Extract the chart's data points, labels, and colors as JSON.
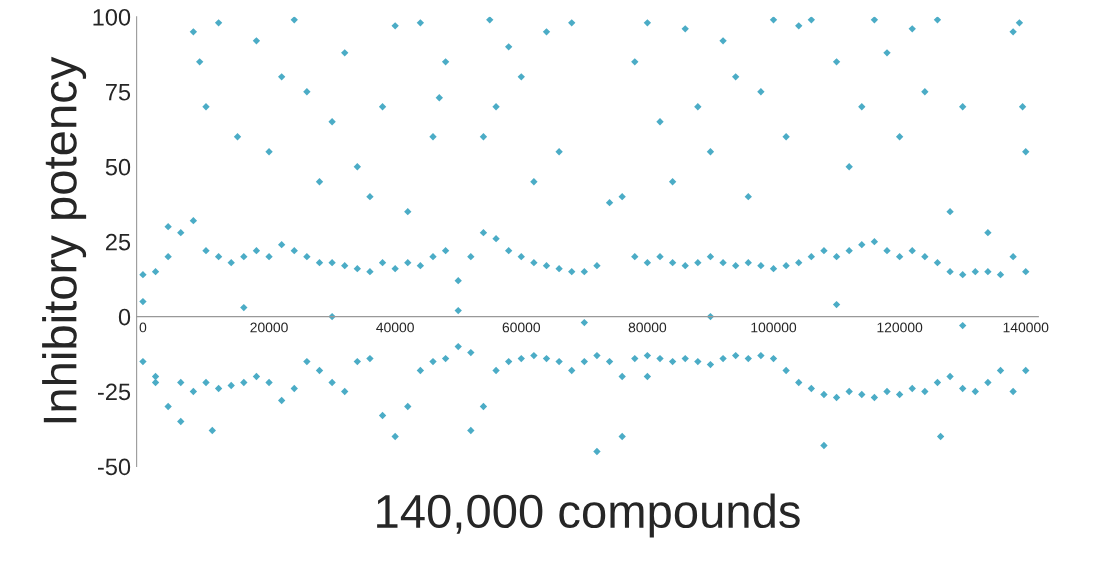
{
  "chart_data": {
    "type": "scatter",
    "xlabel": "140,000 compounds",
    "ylabel": "Inhibitory potency",
    "xlim": [
      -1000,
      142000
    ],
    "xticks": [
      0,
      20000,
      40000,
      60000,
      80000,
      100000,
      120000,
      140000
    ],
    "ylim": [
      -50,
      100
    ],
    "yticks": [
      -50,
      -25,
      0,
      25,
      50,
      75,
      100
    ],
    "grid": false,
    "marker": "diamond",
    "series": [
      {
        "color": "#4bacc6",
        "x": [
          0,
          2000,
          4000,
          6000,
          8000,
          10000,
          12000,
          14000,
          16000,
          18000,
          20000,
          22000,
          24000,
          26000,
          28000,
          30000,
          32000,
          34000,
          36000,
          38000,
          40000,
          42000,
          44000,
          46000,
          48000,
          50000,
          52000,
          54000,
          56000,
          58000,
          60000,
          62000,
          64000,
          66000,
          68000,
          70000,
          72000,
          74000,
          76000,
          78000,
          80000,
          82000,
          84000,
          86000,
          88000,
          90000,
          92000,
          94000,
          96000,
          98000,
          100000,
          102000,
          104000,
          106000,
          108000,
          110000,
          112000,
          114000,
          116000,
          118000,
          120000,
          122000,
          124000,
          126000,
          128000,
          130000,
          132000,
          134000,
          136000,
          138000,
          140000
        ],
        "values": [
          14,
          15,
          20,
          28,
          32,
          22,
          20,
          18,
          20,
          22,
          20,
          24,
          22,
          20,
          18,
          18,
          17,
          16,
          15,
          18,
          16,
          18,
          17,
          20,
          22,
          12,
          20,
          28,
          26,
          22,
          20,
          18,
          17,
          16,
          15,
          15,
          17,
          38,
          40,
          20,
          18,
          20,
          18,
          17,
          18,
          20,
          18,
          17,
          18,
          17,
          16,
          17,
          18,
          20,
          22,
          20,
          22,
          24,
          25,
          22,
          20,
          22,
          20,
          18,
          15,
          14,
          15,
          15,
          14,
          20,
          15
        ]
      },
      {
        "color": "#4bacc6",
        "x": [
          0,
          2000,
          4000,
          6000,
          8000,
          10000,
          12000,
          14000,
          16000,
          18000,
          20000,
          22000,
          24000,
          26000,
          28000,
          30000,
          32000,
          34000,
          36000,
          38000,
          40000,
          42000,
          44000,
          46000,
          48000,
          50000,
          52000,
          54000,
          56000,
          58000,
          60000,
          62000,
          64000,
          66000,
          68000,
          70000,
          72000,
          74000,
          76000,
          78000,
          80000,
          82000,
          84000,
          86000,
          88000,
          90000,
          92000,
          94000,
          96000,
          98000,
          100000,
          102000,
          104000,
          106000,
          108000,
          110000,
          112000,
          114000,
          116000,
          118000,
          120000,
          122000,
          124000,
          126000,
          128000,
          130000,
          132000,
          134000,
          136000,
          138000,
          140000
        ],
        "values": [
          -15,
          -22,
          -30,
          -22,
          -25,
          -22,
          -24,
          -23,
          -22,
          -20,
          -22,
          -28,
          -24,
          -15,
          -18,
          -22,
          -25,
          -15,
          -14,
          -33,
          -40,
          -30,
          -18,
          -15,
          -14,
          -10,
          -12,
          -30,
          -18,
          -15,
          -14,
          -13,
          -14,
          -15,
          -18,
          -15,
          -13,
          -15,
          -20,
          -14,
          -13,
          -14,
          -15,
          -14,
          -15,
          -16,
          -14,
          -13,
          -14,
          -13,
          -14,
          -18,
          -22,
          -24,
          -26,
          -27,
          -25,
          -26,
          -27,
          -25,
          -26,
          -24,
          -25,
          -22,
          -20,
          -24,
          -25,
          -22,
          -18,
          -25,
          -18
        ]
      },
      {
        "color": "#4bacc6",
        "x": [
          8000,
          9000,
          10000,
          12000,
          15000,
          18000,
          20000,
          22000,
          24000,
          26000,
          28000,
          30000,
          32000,
          34000,
          36000,
          38000,
          40000,
          42000,
          44000,
          46000,
          47000,
          48000,
          54000,
          55000,
          56000,
          58000,
          60000,
          62000,
          64000,
          66000,
          68000,
          72000,
          76000,
          78000,
          80000,
          82000,
          84000,
          86000,
          88000,
          90000,
          92000,
          94000,
          96000,
          98000,
          100000,
          102000,
          104000,
          106000,
          108000,
          110000,
          112000,
          114000,
          116000,
          118000,
          120000,
          122000,
          124000,
          126000,
          126500,
          128000,
          130000,
          134000,
          138000,
          139000,
          139500,
          140000,
          4000,
          2000,
          6000,
          11000,
          52000,
          80000,
          0,
          16000,
          30000,
          50000,
          70000,
          90000,
          110000,
          130000
        ],
        "values": [
          95,
          85,
          70,
          98,
          60,
          92,
          55,
          80,
          99,
          75,
          45,
          65,
          88,
          50,
          40,
          70,
          97,
          35,
          98,
          60,
          73,
          85,
          60,
          99,
          70,
          90,
          80,
          45,
          95,
          55,
          98,
          -45,
          -40,
          85,
          98,
          65,
          45,
          96,
          70,
          55,
          92,
          80,
          40,
          75,
          99,
          60,
          97,
          99,
          -43,
          85,
          50,
          70,
          99,
          88,
          60,
          96,
          75,
          99,
          -40,
          35,
          70,
          28,
          95,
          98,
          70,
          55,
          30,
          -20,
          -35,
          -38,
          -38,
          -20,
          5,
          3,
          0,
          2,
          -2,
          0,
          4,
          -3
        ]
      }
    ]
  }
}
